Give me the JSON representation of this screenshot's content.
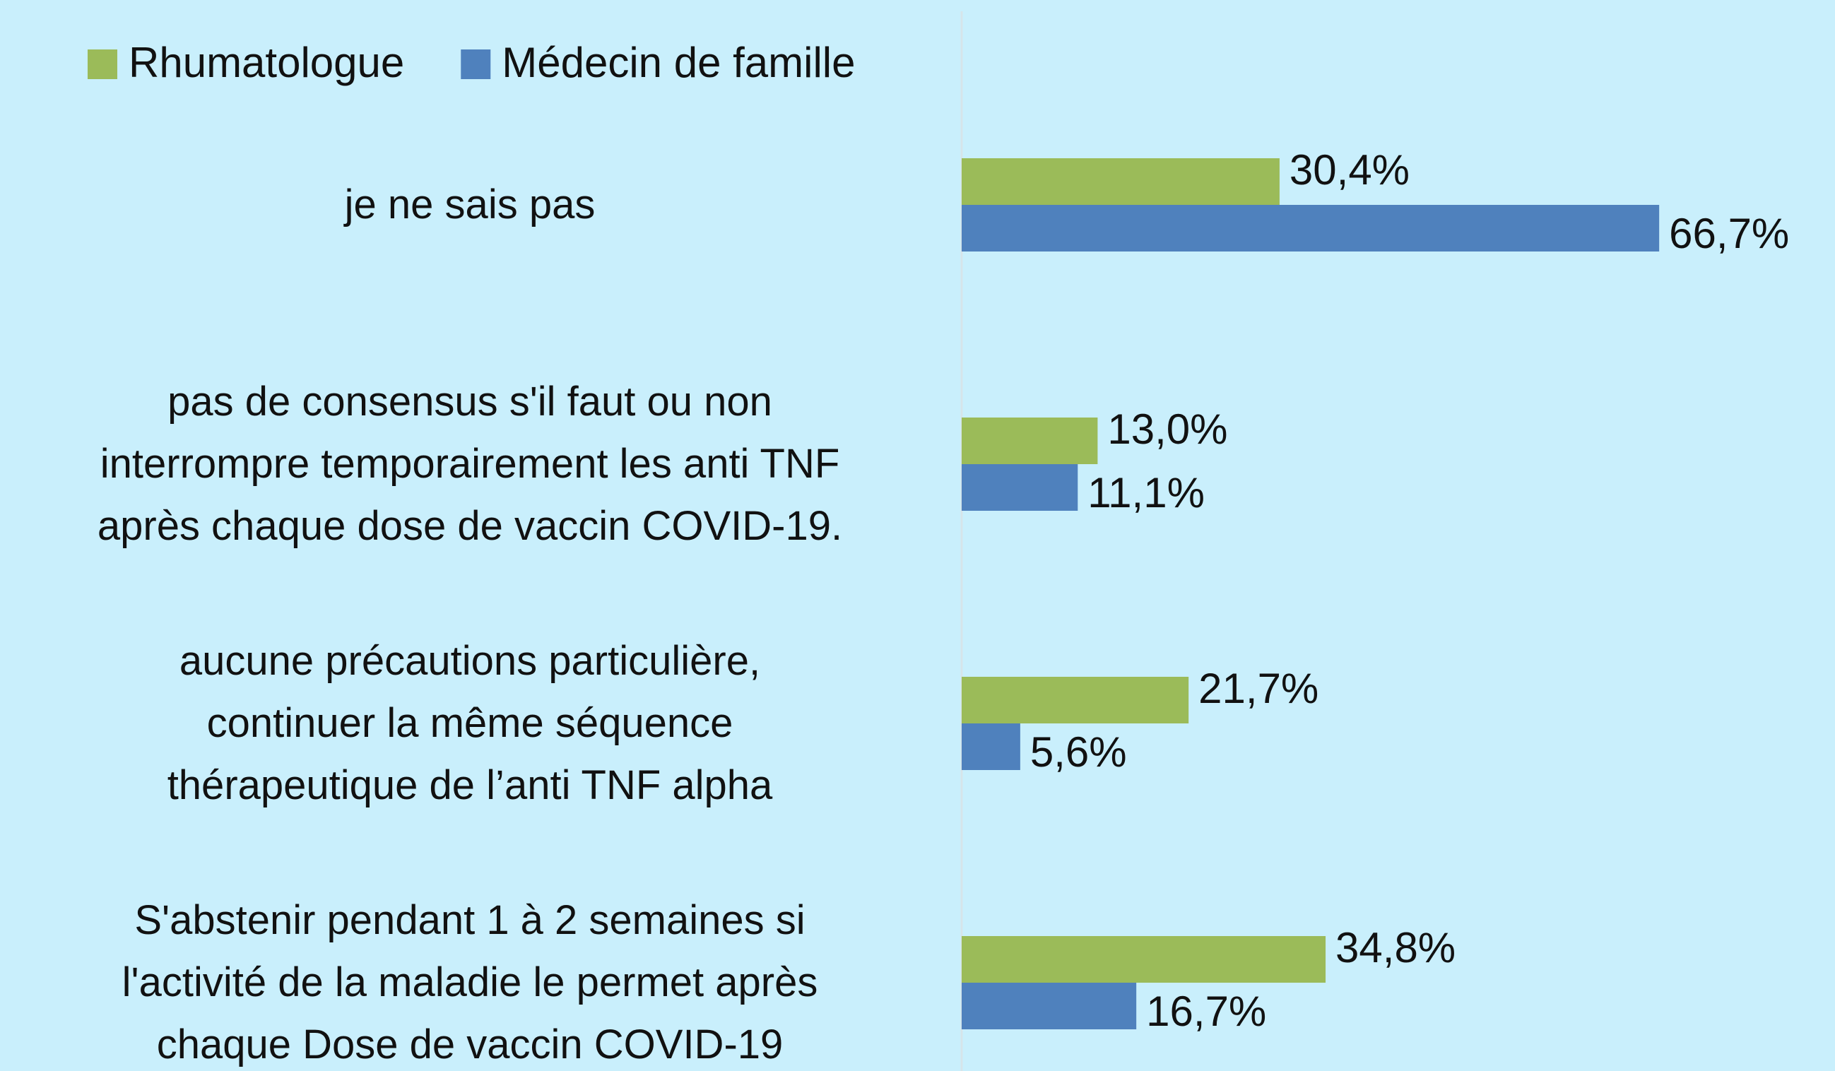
{
  "chart_data": {
    "type": "barh",
    "categories": [
      "je ne sais pas",
      "pas de consensus s'il faut ou non\ninterrompre temporairement les anti TNF\naprès chaque dose de vaccin COVID-19.",
      "aucune précautions particulière,\ncontinuer la même séquence\nthérapeutique de l’anti TNF alpha",
      "S'abstenir pendant 1 à 2 semaines si\nl'activité de la maladie le permet après\nchaque Dose de vaccin COVID-19"
    ],
    "series": [
      {
        "name": "Rhumatologue",
        "color": "#9bbb59",
        "values": [
          30.4,
          13.0,
          21.7,
          34.8
        ],
        "value_labels": [
          "30,4%",
          "13,0%",
          "21,7%",
          "34,8%"
        ]
      },
      {
        "name": "Médecin de famille",
        "color": "#4f81bd",
        "values": [
          66.7,
          11.1,
          5.6,
          16.7
        ],
        "value_labels": [
          "66,7%",
          "11,1%",
          "5,6%",
          "16,7%"
        ]
      }
    ],
    "xlim": [
      0,
      80
    ],
    "legend": "top"
  }
}
